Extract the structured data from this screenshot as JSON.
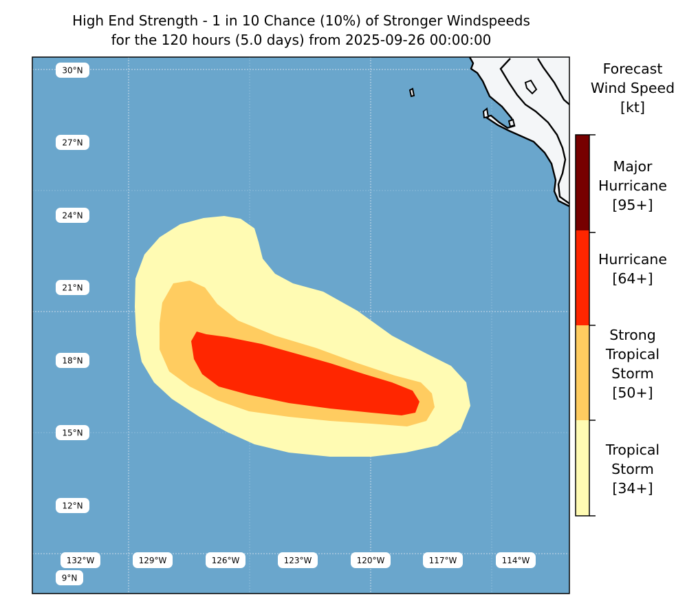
{
  "title": {
    "line1": "High End Strength - 1 in 10 Chance (10%) of Stronger Windspeeds",
    "line2": "for the 120 hours (5.0 days) from 2025-09-26 00:00:00"
  },
  "map": {
    "ocean_color": "#6aa6cc",
    "land_color": "#f4f6f8",
    "lat_labels": [
      "30°N",
      "27°N",
      "24°N",
      "21°N",
      "18°N",
      "15°N",
      "12°N",
      "9°N"
    ],
    "lon_labels": [
      "132°W",
      "129°W",
      "126°W",
      "123°W",
      "120°W",
      "117°W",
      "114°W"
    ]
  },
  "colorbar": {
    "title_lines": [
      "Forecast",
      "Wind Speed",
      "[kt]"
    ],
    "categories": [
      {
        "lines": [
          "Tropical",
          "Storm",
          "[34+]"
        ],
        "color": "#fffbb3"
      },
      {
        "lines": [
          "Strong",
          "Tropical",
          "Storm",
          "[50+]"
        ],
        "color": "#ffcc60"
      },
      {
        "lines": [
          "Hurricane",
          "[64+]"
        ],
        "color": "#ff2600"
      },
      {
        "lines": [
          "Major",
          "Hurricane",
          "[95+]"
        ],
        "color": "#770000"
      }
    ]
  }
}
